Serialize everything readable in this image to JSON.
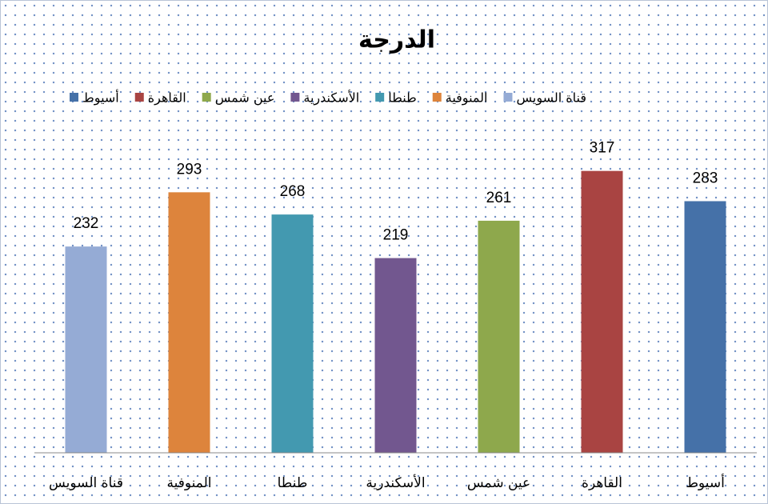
{
  "chart_data": {
    "type": "bar",
    "title": "الدرجة",
    "categories": [
      "قناة السويس",
      "المنوفية",
      "طنطا",
      "الأسكندرية",
      "عين شمس",
      "القاهرة",
      "أسيوط"
    ],
    "values": [
      232,
      293,
      268,
      219,
      261,
      317,
      283
    ],
    "colors": [
      "#95abd5",
      "#dd843c",
      "#4399b0",
      "#72578f",
      "#8ea84c",
      "#a94442",
      "#4571a8"
    ],
    "ylim": [
      0,
      350
    ],
    "legend": "top"
  }
}
